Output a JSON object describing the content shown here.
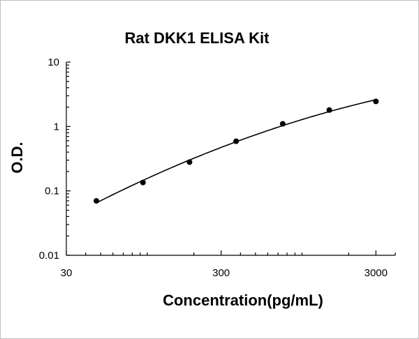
{
  "chart_data": {
    "type": "scatter",
    "title": "Rat DKK1 ELISA Kit",
    "xlabel": "Concentration(pg/mL)",
    "ylabel": "O.D.",
    "x_scale": "log",
    "y_scale": "log",
    "xlim": [
      30,
      4000
    ],
    "ylim": [
      0.01,
      10
    ],
    "x_ticks": [
      {
        "value": 30,
        "label": "30"
      },
      {
        "value": 300,
        "label": "300"
      },
      {
        "value": 3000,
        "label": "3000"
      }
    ],
    "y_ticks": [
      {
        "value": 0.01,
        "label": "0.01"
      },
      {
        "value": 0.1,
        "label": "0.1"
      },
      {
        "value": 1,
        "label": "1"
      },
      {
        "value": 10,
        "label": "10"
      }
    ],
    "grid": false,
    "legend": "none",
    "series": [
      {
        "x": [
          46.9,
          93.8,
          187.5,
          375,
          750,
          1500,
          3000
        ],
        "y": [
          0.07,
          0.135,
          0.28,
          0.59,
          1.1,
          1.8,
          2.45
        ],
        "color": "#000000",
        "fit_curve": true
      }
    ]
  }
}
